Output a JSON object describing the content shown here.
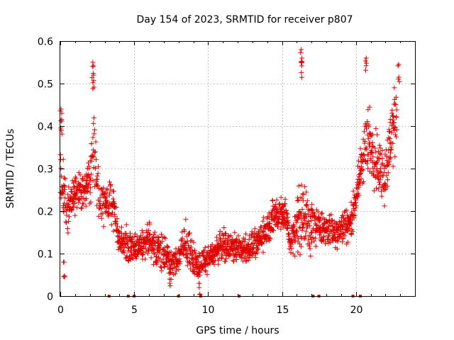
{
  "chart_data": {
    "type": "scatter",
    "title": "Day 154 of 2023, SRMTID for receiver p807",
    "xlabel": "GPS time / hours",
    "ylabel": "SRMTID / TECUs",
    "xlim": [
      0,
      24
    ],
    "ylim": [
      0,
      0.6
    ],
    "x_ticks": [
      0,
      5,
      10,
      15,
      20
    ],
    "y_ticks": [
      0,
      0.1,
      0.2,
      0.3,
      0.4,
      0.5,
      0.6
    ],
    "x_tick_labels": [
      "0",
      "5",
      "10",
      "15",
      "20"
    ],
    "y_tick_labels": [
      "0",
      "0.1",
      "0.2",
      "0.3",
      "0.4",
      "0.5",
      "0.6"
    ],
    "marker": "+",
    "marker_color": "#e00000",
    "grid": true,
    "profile": [
      {
        "x": 0.0,
        "y": 0.3,
        "spread": 0.12
      },
      {
        "x": 0.5,
        "y": 0.2,
        "spread": 0.08
      },
      {
        "x": 1.0,
        "y": 0.24,
        "spread": 0.07
      },
      {
        "x": 1.5,
        "y": 0.24,
        "spread": 0.07
      },
      {
        "x": 2.0,
        "y": 0.28,
        "spread": 0.09
      },
      {
        "x": 2.3,
        "y": 0.35,
        "spread": 0.16
      },
      {
        "x": 2.7,
        "y": 0.22,
        "spread": 0.07
      },
      {
        "x": 3.2,
        "y": 0.21,
        "spread": 0.06
      },
      {
        "x": 3.5,
        "y": 0.22,
        "spread": 0.1
      },
      {
        "x": 4.0,
        "y": 0.13,
        "spread": 0.05
      },
      {
        "x": 5.0,
        "y": 0.11,
        "spread": 0.05
      },
      {
        "x": 6.0,
        "y": 0.13,
        "spread": 0.05
      },
      {
        "x": 7.0,
        "y": 0.1,
        "spread": 0.06
      },
      {
        "x": 7.6,
        "y": 0.07,
        "spread": 0.04
      },
      {
        "x": 8.5,
        "y": 0.12,
        "spread": 0.07
      },
      {
        "x": 9.3,
        "y": 0.07,
        "spread": 0.04
      },
      {
        "x": 10.0,
        "y": 0.09,
        "spread": 0.04
      },
      {
        "x": 11.0,
        "y": 0.12,
        "spread": 0.05
      },
      {
        "x": 12.5,
        "y": 0.11,
        "spread": 0.05
      },
      {
        "x": 13.5,
        "y": 0.13,
        "spread": 0.05
      },
      {
        "x": 14.5,
        "y": 0.19,
        "spread": 0.06
      },
      {
        "x": 15.2,
        "y": 0.2,
        "spread": 0.07
      },
      {
        "x": 15.6,
        "y": 0.12,
        "spread": 0.05
      },
      {
        "x": 16.2,
        "y": 0.2,
        "spread": 0.14
      },
      {
        "x": 16.8,
        "y": 0.17,
        "spread": 0.1
      },
      {
        "x": 17.5,
        "y": 0.16,
        "spread": 0.06
      },
      {
        "x": 18.5,
        "y": 0.15,
        "spread": 0.05
      },
      {
        "x": 19.5,
        "y": 0.17,
        "spread": 0.06
      },
      {
        "x": 20.0,
        "y": 0.22,
        "spread": 0.06
      },
      {
        "x": 20.5,
        "y": 0.34,
        "spread": 0.12
      },
      {
        "x": 21.0,
        "y": 0.36,
        "spread": 0.11
      },
      {
        "x": 21.5,
        "y": 0.31,
        "spread": 0.11
      },
      {
        "x": 22.0,
        "y": 0.28,
        "spread": 0.1
      },
      {
        "x": 22.4,
        "y": 0.38,
        "spread": 0.12
      },
      {
        "x": 22.8,
        "y": 0.43,
        "spread": 0.1
      }
    ],
    "peaks": [
      {
        "x": 0.05,
        "y": 0.44
      },
      {
        "x": 0.1,
        "y": 0.43
      },
      {
        "x": 2.2,
        "y": 0.55
      },
      {
        "x": 2.25,
        "y": 0.52
      },
      {
        "x": 16.3,
        "y": 0.58
      },
      {
        "x": 16.35,
        "y": 0.56
      },
      {
        "x": 20.7,
        "y": 0.56
      },
      {
        "x": 22.9,
        "y": 0.545
      },
      {
        "x": 0.25,
        "y": 0.08
      },
      {
        "x": 9.4,
        "y": 0.03
      },
      {
        "x": 7.4,
        "y": 0.04
      }
    ],
    "gap_markers_x": [
      3.3,
      4.6,
      5.0,
      8.0,
      9.5,
      12.1,
      17.1,
      17.5,
      19.8,
      20.3
    ]
  }
}
